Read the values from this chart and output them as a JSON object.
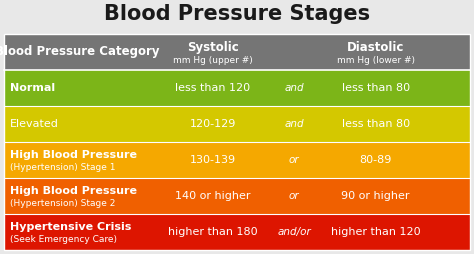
{
  "title": "Blood Pressure Stages",
  "rows": [
    {
      "category": "Normal",
      "category_sub": "",
      "systolic": "less than 120",
      "connector": "and",
      "diastolic": "less than 80",
      "bg_color": "#7cb518",
      "text_color": "#ffffff",
      "bold_category": true
    },
    {
      "category": "Elevated",
      "category_sub": "",
      "systolic": "120-129",
      "connector": "and",
      "diastolic": "less than 80",
      "bg_color": "#d4c800",
      "text_color": "#ffffff",
      "bold_category": false
    },
    {
      "category": "High Blood Pressure",
      "category_sub": "(Hypertension) Stage 1",
      "systolic": "130-139",
      "connector": "or",
      "diastolic": "80-89",
      "bg_color": "#f5a800",
      "text_color": "#ffffff",
      "bold_category": true
    },
    {
      "category": "High Blood Pressure",
      "category_sub": "(Hypertension) Stage 2",
      "systolic": "140 or higher",
      "connector": "or",
      "diastolic": "90 or higher",
      "bg_color": "#f06000",
      "text_color": "#ffffff",
      "bold_category": true
    },
    {
      "category": "Hypertensive Crisis",
      "category_sub": "(Seek Emergency Care)",
      "systolic": "higher than 180",
      "connector": "and/or",
      "diastolic": "higher than 120",
      "bg_color": "#dd1500",
      "text_color": "#ffffff",
      "bold_category": true
    }
  ],
  "header_bg": "#757575",
  "header_text": "#ffffff",
  "title_color": "#1a1a1a",
  "bg_color": "#e8e8e8",
  "title_fontsize": 15,
  "header_fontsize": 8.5,
  "header_sub_fontsize": 6.5,
  "cat_fontsize": 8.0,
  "cat_sub_fontsize": 6.5,
  "val_fontsize": 8.0,
  "conn_fontsize": 7.5
}
